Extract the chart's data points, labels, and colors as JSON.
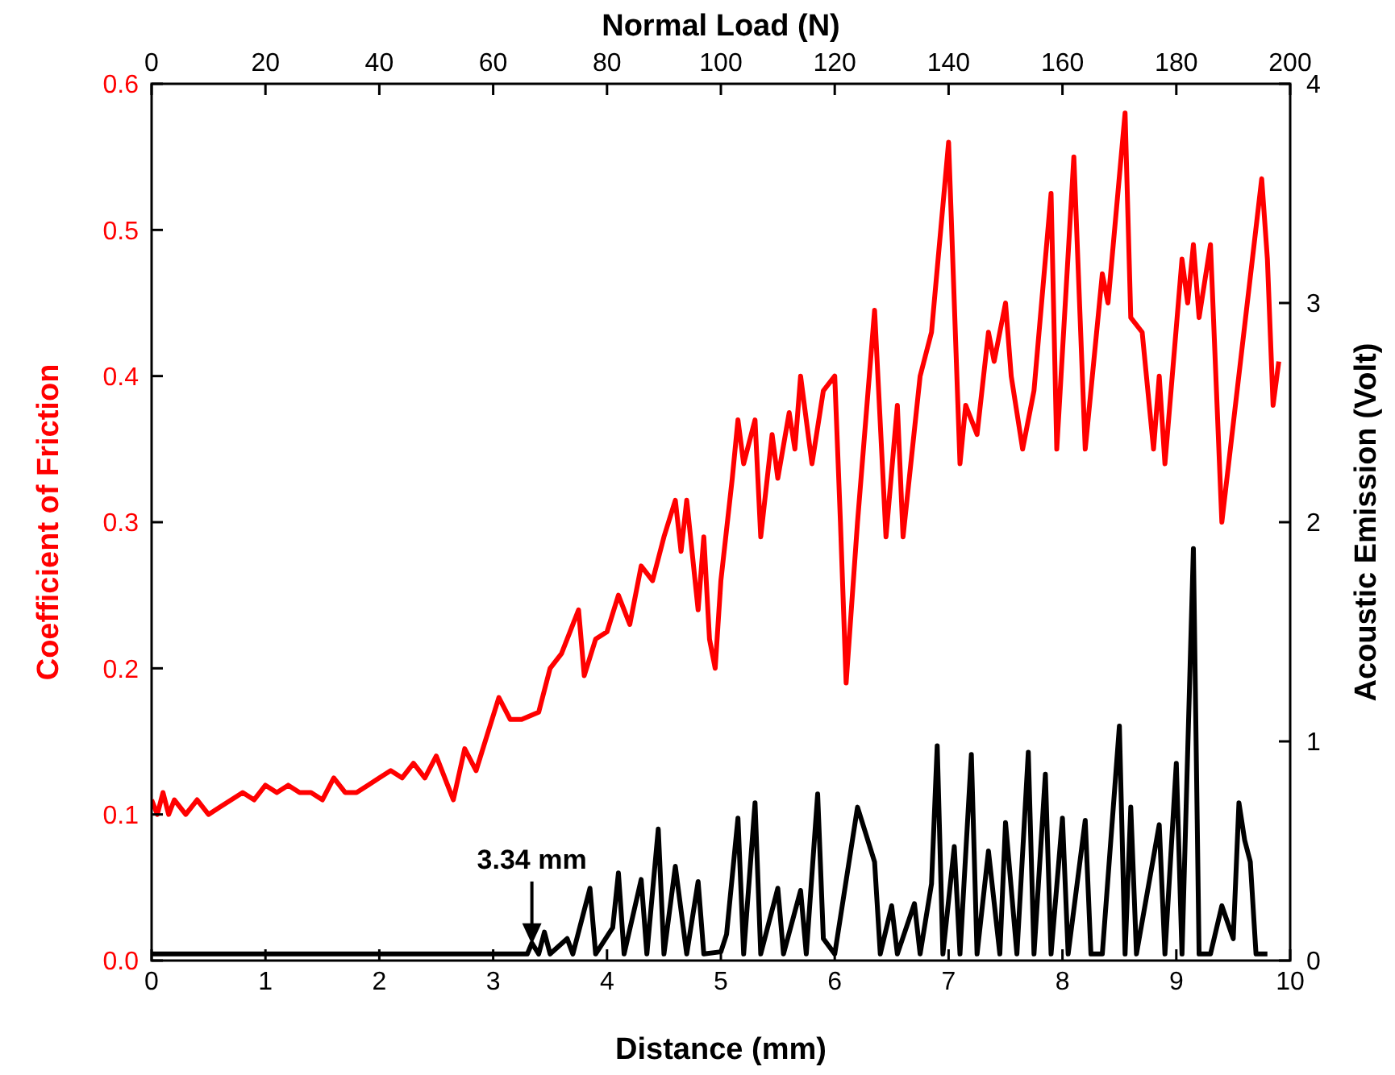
{
  "chart_data": {
    "type": "line",
    "xlabel": "Distance (mm)",
    "ylabel": "Coefficient of Friction",
    "y2label": "Acoustic Emission (Volt)",
    "x2label": "Normal Load (N)",
    "xlim": [
      0,
      10
    ],
    "xticks": [
      0,
      1,
      2,
      3,
      4,
      5,
      6,
      7,
      8,
      9,
      10
    ],
    "x2lim": [
      0,
      200
    ],
    "x2ticks": [
      0,
      20,
      40,
      60,
      80,
      100,
      120,
      140,
      160,
      180,
      200
    ],
    "ylim": [
      0,
      0.6
    ],
    "yticks": [
      {
        "value": 0,
        "label": "0.0"
      },
      {
        "value": 0.1,
        "label": "0.1"
      },
      {
        "value": 0.2,
        "label": "0.2"
      },
      {
        "value": 0.3,
        "label": "0.3"
      },
      {
        "value": 0.4,
        "label": "0.4"
      },
      {
        "value": 0.5,
        "label": "0.5"
      },
      {
        "value": 0.6,
        "label": "0.6"
      }
    ],
    "y2lim": [
      0,
      4
    ],
    "y2ticks": [
      0,
      1,
      2,
      3,
      4
    ],
    "grid": false,
    "line_style": "solid",
    "marker": "none",
    "annotations": [
      {
        "text": "3.34 mm",
        "x": 3.34,
        "y": 0.01
      }
    ],
    "series": [
      {
        "color": "#ff0000",
        "x": [
          0,
          0.05,
          0.1,
          0.15,
          0.2,
          0.3,
          0.4,
          0.5,
          0.6,
          0.7,
          0.8,
          0.9,
          1.0,
          1.1,
          1.2,
          1.3,
          1.4,
          1.5,
          1.6,
          1.7,
          1.8,
          1.9,
          2.0,
          2.1,
          2.2,
          2.3,
          2.4,
          2.5,
          2.6,
          2.65,
          2.75,
          2.85,
          2.95,
          3.05,
          3.15,
          3.25,
          3.4,
          3.5,
          3.6,
          3.7,
          3.75,
          3.8,
          3.9,
          4.0,
          4.1,
          4.2,
          4.3,
          4.4,
          4.5,
          4.6,
          4.65,
          4.7,
          4.8,
          4.85,
          4.9,
          4.95,
          5.0,
          5.1,
          5.15,
          5.2,
          5.3,
          5.35,
          5.45,
          5.5,
          5.6,
          5.65,
          5.7,
          5.8,
          5.9,
          6.0,
          6.05,
          6.1,
          6.2,
          6.35,
          6.45,
          6.55,
          6.6,
          6.75,
          6.85,
          7.0,
          7.1,
          7.15,
          7.25,
          7.35,
          7.4,
          7.5,
          7.55,
          7.65,
          7.75,
          7.9,
          7.95,
          8.1,
          8.2,
          8.35,
          8.4,
          8.55,
          8.6,
          8.7,
          8.8,
          8.85,
          8.9,
          9.05,
          9.1,
          9.15,
          9.2,
          9.3,
          9.4,
          9.75,
          9.8,
          9.85,
          9.9
        ],
        "values": [
          0.11,
          0.1,
          0.115,
          0.1,
          0.11,
          0.1,
          0.11,
          0.1,
          0.105,
          0.11,
          0.115,
          0.11,
          0.12,
          0.115,
          0.12,
          0.115,
          0.115,
          0.11,
          0.125,
          0.115,
          0.115,
          0.12,
          0.125,
          0.13,
          0.125,
          0.135,
          0.125,
          0.14,
          0.12,
          0.11,
          0.145,
          0.13,
          0.155,
          0.18,
          0.165,
          0.165,
          0.17,
          0.2,
          0.21,
          0.23,
          0.24,
          0.195,
          0.22,
          0.225,
          0.25,
          0.23,
          0.27,
          0.26,
          0.29,
          0.315,
          0.28,
          0.315,
          0.24,
          0.29,
          0.22,
          0.2,
          0.26,
          0.33,
          0.37,
          0.34,
          0.37,
          0.29,
          0.36,
          0.33,
          0.375,
          0.35,
          0.4,
          0.34,
          0.39,
          0.4,
          0.3,
          0.19,
          0.3,
          0.445,
          0.29,
          0.38,
          0.29,
          0.4,
          0.43,
          0.56,
          0.34,
          0.38,
          0.36,
          0.43,
          0.41,
          0.45,
          0.4,
          0.35,
          0.39,
          0.525,
          0.35,
          0.55,
          0.35,
          0.47,
          0.45,
          0.58,
          0.44,
          0.43,
          0.35,
          0.4,
          0.34,
          0.48,
          0.45,
          0.49,
          0.44,
          0.49,
          0.3,
          0.535,
          0.48,
          0.38,
          0.41
        ]
      },
      {
        "color": "#000000",
        "axis": "y2",
        "x": [
          0,
          3.3,
          3.34,
          3.4,
          3.45,
          3.5,
          3.65,
          3.7,
          3.85,
          3.9,
          4.05,
          4.1,
          4.15,
          4.3,
          4.35,
          4.45,
          4.5,
          4.6,
          4.7,
          4.8,
          4.85,
          5.0,
          5.05,
          5.15,
          5.2,
          5.3,
          5.35,
          5.5,
          5.55,
          5.7,
          5.75,
          5.85,
          5.9,
          6.0,
          6.2,
          6.35,
          6.4,
          6.5,
          6.55,
          6.7,
          6.75,
          6.85,
          6.9,
          6.95,
          7.05,
          7.1,
          7.2,
          7.25,
          7.35,
          7.45,
          7.5,
          7.6,
          7.7,
          7.75,
          7.85,
          7.9,
          8.0,
          8.05,
          8.2,
          8.25,
          8.35,
          8.5,
          8.55,
          8.6,
          8.65,
          8.85,
          8.9,
          9.0,
          9.05,
          9.15,
          9.2,
          9.3,
          9.4,
          9.5,
          9.55,
          9.6,
          9.65,
          9.7,
          9.8
        ],
        "values": [
          0.03,
          0.03,
          0.08,
          0.03,
          0.13,
          0.03,
          0.1,
          0.03,
          0.33,
          0.03,
          0.15,
          0.4,
          0.03,
          0.37,
          0.03,
          0.6,
          0.03,
          0.43,
          0.03,
          0.36,
          0.03,
          0.04,
          0.12,
          0.65,
          0.03,
          0.72,
          0.03,
          0.33,
          0.03,
          0.32,
          0.03,
          0.76,
          0.1,
          0.03,
          0.7,
          0.45,
          0.03,
          0.25,
          0.03,
          0.26,
          0.03,
          0.35,
          0.98,
          0.03,
          0.52,
          0.03,
          0.94,
          0.03,
          0.5,
          0.03,
          0.63,
          0.03,
          0.95,
          0.03,
          0.85,
          0.03,
          0.65,
          0.03,
          0.64,
          0.03,
          0.03,
          1.07,
          0.03,
          0.7,
          0.03,
          0.62,
          0.03,
          0.9,
          0.03,
          1.88,
          0.03,
          0.03,
          0.25,
          0.1,
          0.72,
          0.55,
          0.45,
          0.03,
          0.03
        ]
      }
    ]
  }
}
